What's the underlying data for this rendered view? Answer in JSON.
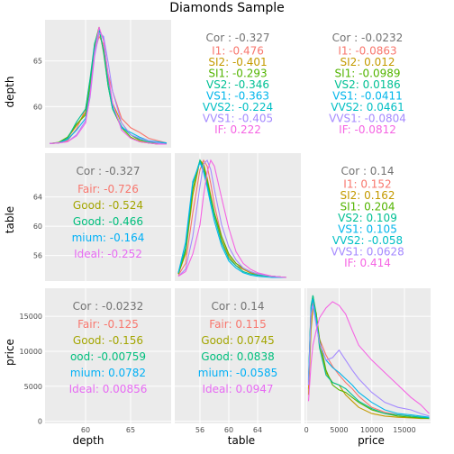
{
  "figure": {
    "title": "Diamonds Sample",
    "variables": [
      "depth",
      "table",
      "price"
    ]
  },
  "chart_data": {
    "type": "scatterplot-matrix",
    "title": "Diamonds Sample",
    "variables": [
      "depth",
      "table",
      "price"
    ],
    "ranges": {
      "depth": [
        55.5,
        69.5
      ],
      "table": [
        52.5,
        70
      ],
      "price": [
        -300,
        19000
      ]
    },
    "ticks": {
      "depth": [
        60,
        65
      ],
      "table": [
        56,
        60,
        64
      ],
      "price": [
        0,
        5000,
        10000,
        15000
      ]
    },
    "tick_labels": {
      "depth_y": [
        "60",
        "65"
      ],
      "depth_x": [
        "60",
        "65"
      ],
      "table_y": [
        "56",
        "60",
        "64"
      ],
      "table_x": [
        "56",
        "60",
        "64"
      ],
      "price_y": [
        "0",
        "5000",
        "10000",
        "15000"
      ],
      "price_x": [
        "0",
        "5000",
        "10000",
        "15000"
      ]
    },
    "groups": [
      {
        "name": "I1",
        "color": "#f8766d"
      },
      {
        "name": "SI2",
        "color": "#c49a00"
      },
      {
        "name": "SI1",
        "color": "#53b400"
      },
      {
        "name": "VS2",
        "color": "#00c094"
      },
      {
        "name": "VS1",
        "color": "#00b6eb"
      },
      {
        "name": "VVS2",
        "color": "#a58aff"
      },
      {
        "name": "VVS1",
        "color": "#fb61d7"
      },
      {
        "name": "IF",
        "color": "#f564e3"
      }
    ],
    "correlations": [
      {
        "pair": "depth-table",
        "title": "Cor : -0.327",
        "labels": [
          {
            "text": "I1: -0.476",
            "color": "#f8766d"
          },
          {
            "text": "SI2: -0.401",
            "color": "#c49a00"
          },
          {
            "text": "SI1: -0.293",
            "color": "#53b400"
          },
          {
            "text": "VS2: -0.346",
            "color": "#00c094"
          },
          {
            "text": "VS1: -0.363",
            "color": "#00b6eb"
          },
          {
            "text": "VVS2: -0.224",
            "color": "#00bfc4"
          },
          {
            "text": "VVS1: -0.405",
            "color": "#a58aff"
          },
          {
            "text": "IF: 0.222",
            "color": "#f564e3"
          }
        ]
      },
      {
        "pair": "depth-price",
        "title": "Cor : -0.0232",
        "labels": [
          {
            "text": "I1: -0.0863",
            "color": "#f8766d"
          },
          {
            "text": "SI2: 0.012",
            "color": "#c49a00"
          },
          {
            "text": "SI1: -0.0989",
            "color": "#53b400"
          },
          {
            "text": "VS2: 0.0186",
            "color": "#00c094"
          },
          {
            "text": "VS1: -0.0411",
            "color": "#00b6eb"
          },
          {
            "text": "VVS2: 0.0461",
            "color": "#00bfc4"
          },
          {
            "text": "VVS1: -0.0804",
            "color": "#a58aff"
          },
          {
            "text": "IF: -0.0812",
            "color": "#f564e3"
          }
        ]
      },
      {
        "pair": "table-depth",
        "title": "Cor : -0.327",
        "labels": [
          {
            "text": "Fair: -0.726",
            "color": "#f8766d"
          },
          {
            "text": "Good: -0.524",
            "color": "#a3a500"
          },
          {
            "text": "Good: -0.466",
            "color": "#00bf7d"
          },
          {
            "text": "mium: -0.164",
            "color": "#00b0f6"
          },
          {
            "text": "Ideal: -0.252",
            "color": "#e76bf3"
          }
        ]
      },
      {
        "pair": "table-price",
        "title": "Cor : 0.14",
        "labels": [
          {
            "text": "I1: 0.152",
            "color": "#f8766d"
          },
          {
            "text": "SI2: 0.162",
            "color": "#c49a00"
          },
          {
            "text": "SI1: 0.204",
            "color": "#53b400"
          },
          {
            "text": "VS2: 0.109",
            "color": "#00c094"
          },
          {
            "text": "VS1: 0.105",
            "color": "#00b6eb"
          },
          {
            "text": "VVS2: -0.058",
            "color": "#00bfc4"
          },
          {
            "text": "VVS1: 0.0628",
            "color": "#a58aff"
          },
          {
            "text": "IF: 0.414",
            "color": "#f564e3"
          }
        ]
      },
      {
        "pair": "price-depth",
        "title": "Cor : -0.0232",
        "labels": [
          {
            "text": "Fair: -0.125",
            "color": "#f8766d"
          },
          {
            "text": "Good: -0.156",
            "color": "#a3a500"
          },
          {
            "text": "ood: -0.00759",
            "color": "#00bf7d"
          },
          {
            "text": "mium: 0.0782",
            "color": "#00b0f6"
          },
          {
            "text": "Ideal: 0.00856",
            "color": "#e76bf3"
          }
        ]
      },
      {
        "pair": "price-table",
        "title": "Cor : 0.14",
        "labels": [
          {
            "text": "Fair: 0.115",
            "color": "#f8766d"
          },
          {
            "text": "Good: 0.0745",
            "color": "#a3a500"
          },
          {
            "text": "Good: 0.0838",
            "color": "#00bf7d"
          },
          {
            "text": "mium: -0.0585",
            "color": "#00b0f6"
          },
          {
            "text": "Ideal: 0.0947",
            "color": "#e76bf3"
          }
        ]
      }
    ],
    "densities": {
      "depth": {
        "x": [
          56,
          57,
          58,
          59,
          60,
          60.5,
          61,
          61.5,
          62,
          62.5,
          63,
          64,
          65,
          66,
          67,
          68,
          69
        ],
        "series": [
          {
            "name": "I1",
            "color": "#f8766d",
            "y": [
              0.005,
              0.01,
              0.03,
              0.13,
              0.3,
              0.55,
              0.78,
              0.92,
              0.85,
              0.6,
              0.45,
              0.22,
              0.14,
              0.1,
              0.05,
              0.03,
              0.01
            ]
          },
          {
            "name": "SI2",
            "color": "#c49a00",
            "y": [
              0.005,
              0.01,
              0.05,
              0.16,
              0.27,
              0.5,
              0.82,
              0.97,
              0.8,
              0.55,
              0.35,
              0.18,
              0.08,
              0.03,
              0.01,
              0.005,
              0
            ]
          },
          {
            "name": "SI1",
            "color": "#53b400",
            "y": [
              0.005,
              0.015,
              0.06,
              0.17,
              0.25,
              0.52,
              0.85,
              1.0,
              0.78,
              0.5,
              0.3,
              0.14,
              0.06,
              0.02,
              0.01,
              0,
              0
            ]
          },
          {
            "name": "VS2",
            "color": "#00c094",
            "y": [
              0.005,
              0.01,
              0.05,
              0.19,
              0.3,
              0.56,
              0.86,
              0.98,
              0.8,
              0.5,
              0.3,
              0.15,
              0.08,
              0.04,
              0.02,
              0.01,
              0.005
            ]
          },
          {
            "name": "VS1",
            "color": "#00b6eb",
            "y": [
              0.005,
              0.01,
              0.04,
              0.12,
              0.22,
              0.45,
              0.8,
              0.98,
              0.9,
              0.58,
              0.33,
              0.14,
              0.1,
              0.06,
              0.03,
              0.02,
              0.01
            ]
          },
          {
            "name": "VVS2",
            "color": "#a58aff",
            "y": [
              0.005,
              0.01,
              0.02,
              0.08,
              0.2,
              0.4,
              0.75,
              0.95,
              0.92,
              0.7,
              0.45,
              0.18,
              0.08,
              0.05,
              0.03,
              0.01,
              0
            ]
          },
          {
            "name": "IF",
            "color": "#f564e3",
            "y": [
              0.005,
              0.01,
              0.02,
              0.07,
              0.18,
              0.42,
              0.78,
              1.0,
              0.88,
              0.6,
              0.35,
              0.12,
              0.05,
              0.02,
              0.01,
              0,
              0
            ]
          }
        ]
      },
      "table": {
        "x": [
          53,
          54,
          55,
          56,
          56.5,
          57,
          57.5,
          58,
          59,
          60,
          61,
          62,
          63,
          64,
          66,
          68
        ],
        "series": [
          {
            "name": "I1",
            "color": "#f8766d",
            "y": [
              0.02,
              0.12,
              0.55,
              0.92,
              1.0,
              0.95,
              0.8,
              0.62,
              0.35,
              0.2,
              0.12,
              0.07,
              0.04,
              0.03,
              0.01,
              0
            ]
          },
          {
            "name": "SI2",
            "color": "#c49a00",
            "y": [
              0.03,
              0.2,
              0.7,
              1.0,
              0.97,
              0.85,
              0.7,
              0.55,
              0.32,
              0.18,
              0.1,
              0.07,
              0.04,
              0.02,
              0.01,
              0
            ]
          },
          {
            "name": "SI1",
            "color": "#53b400",
            "y": [
              0.03,
              0.22,
              0.75,
              1.0,
              0.95,
              0.83,
              0.68,
              0.55,
              0.35,
              0.2,
              0.12,
              0.08,
              0.05,
              0.03,
              0.01,
              0
            ]
          },
          {
            "name": "VS2",
            "color": "#00c094",
            "y": [
              0.04,
              0.25,
              0.8,
              1.0,
              0.92,
              0.8,
              0.66,
              0.52,
              0.3,
              0.16,
              0.1,
              0.05,
              0.03,
              0.02,
              0.01,
              0
            ]
          },
          {
            "name": "VS1",
            "color": "#00b6eb",
            "y": [
              0.04,
              0.3,
              0.82,
              0.98,
              0.9,
              0.77,
              0.62,
              0.48,
              0.27,
              0.14,
              0.08,
              0.04,
              0.02,
              0.01,
              0,
              0
            ]
          },
          {
            "name": "VVS2",
            "color": "#a58aff",
            "y": [
              0.01,
              0.07,
              0.35,
              0.78,
              0.97,
              1.0,
              0.92,
              0.75,
              0.45,
              0.26,
              0.15,
              0.08,
              0.05,
              0.03,
              0.01,
              0
            ]
          },
          {
            "name": "IF",
            "color": "#f564e3",
            "y": [
              0.01,
              0.05,
              0.2,
              0.45,
              0.7,
              0.9,
              1.0,
              0.95,
              0.68,
              0.42,
              0.22,
              0.12,
              0.07,
              0.04,
              0.01,
              0
            ]
          }
        ]
      },
      "price": {
        "x": [
          326,
          700,
          1000,
          1500,
          2000,
          3000,
          4000,
          5000,
          6000,
          7000,
          8000,
          10000,
          12000,
          14000,
          16000,
          17500,
          18800
        ],
        "series": [
          {
            "name": "I1",
            "color": "#f8766d",
            "y": [
              0.25,
              0.8,
              0.95,
              0.82,
              0.65,
              0.52,
              0.43,
              0.36,
              0.3,
              0.25,
              0.19,
              0.1,
              0.06,
              0.04,
              0.03,
              0.02,
              0.015
            ]
          },
          {
            "name": "SI2",
            "color": "#c49a00",
            "y": [
              0.2,
              0.72,
              0.9,
              0.86,
              0.6,
              0.38,
              0.3,
              0.28,
              0.2,
              0.15,
              0.1,
              0.05,
              0.03,
              0.02,
              0.015,
              0.01,
              0.01
            ]
          },
          {
            "name": "SI1",
            "color": "#53b400",
            "y": [
              0.3,
              0.9,
              1.0,
              0.85,
              0.65,
              0.4,
              0.28,
              0.24,
              0.22,
              0.18,
              0.14,
              0.08,
              0.05,
              0.03,
              0.02,
              0.015,
              0.01
            ]
          },
          {
            "name": "VS2",
            "color": "#00c094",
            "y": [
              0.33,
              0.92,
              1.0,
              0.82,
              0.58,
              0.36,
              0.3,
              0.28,
              0.25,
              0.2,
              0.15,
              0.09,
              0.05,
              0.04,
              0.03,
              0.02,
              0.015
            ]
          },
          {
            "name": "VS1",
            "color": "#00b6eb",
            "y": [
              0.32,
              0.9,
              0.97,
              0.8,
              0.62,
              0.48,
              0.42,
              0.38,
              0.33,
              0.28,
              0.22,
              0.14,
              0.08,
              0.05,
              0.04,
              0.03,
              0.02
            ]
          },
          {
            "name": "VVS2",
            "color": "#a58aff",
            "y": [
              0.28,
              0.85,
              0.92,
              0.76,
              0.62,
              0.48,
              0.5,
              0.56,
              0.48,
              0.4,
              0.33,
              0.22,
              0.14,
              0.1,
              0.08,
              0.05,
              0.03
            ]
          },
          {
            "name": "IF",
            "color": "#f564e3",
            "y": [
              0.15,
              0.45,
              0.6,
              0.72,
              0.82,
              0.9,
              0.95,
              0.92,
              0.85,
              0.72,
              0.6,
              0.48,
              0.38,
              0.28,
              0.18,
              0.12,
              0.05
            ]
          }
        ]
      }
    }
  }
}
